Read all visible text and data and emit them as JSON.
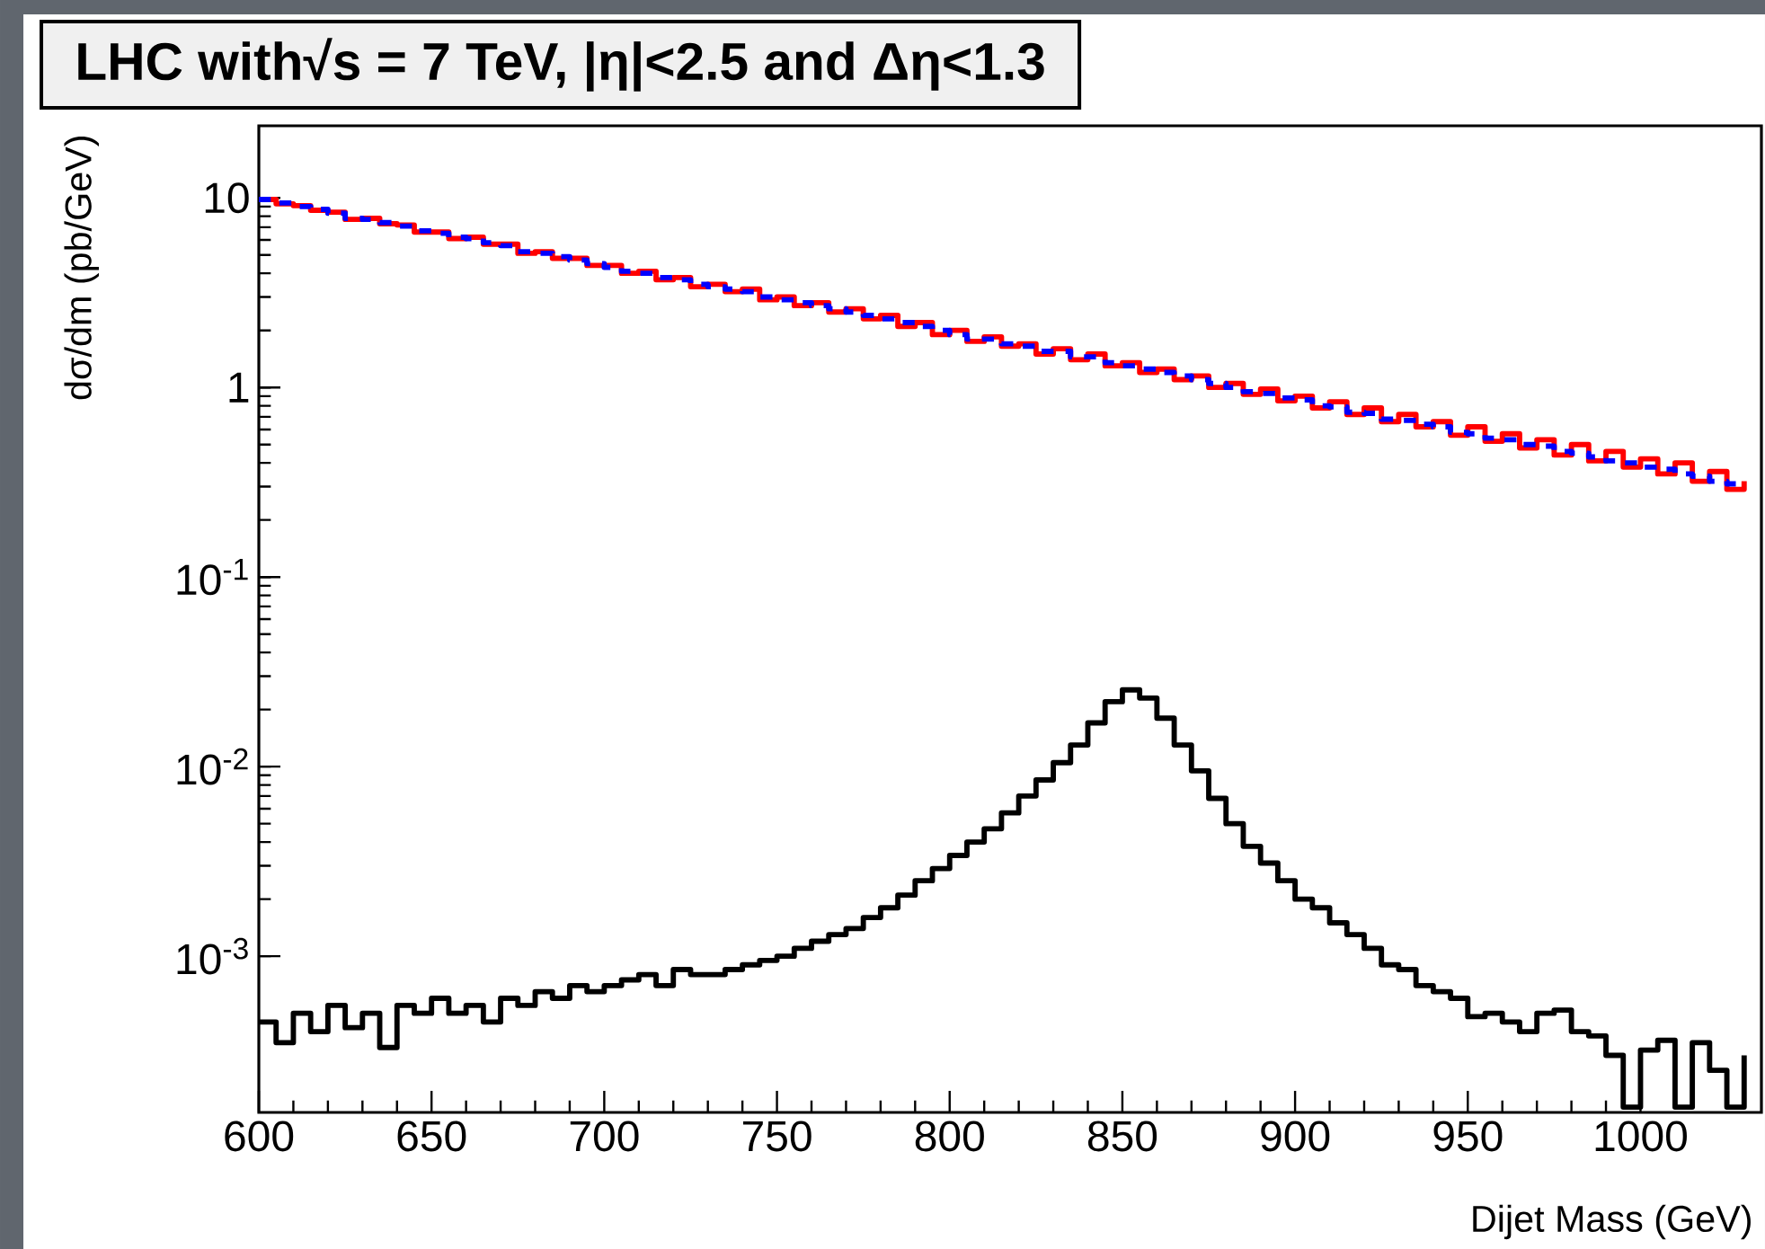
{
  "chart_data": {
    "type": "step",
    "title": "LHC with√s = 7 TeV, |η|<2.5 and Δη<1.3",
    "xlabel": "Dijet Mass (GeV)",
    "ylabel": "dσ/dm (pb/GeV)",
    "log": "y",
    "xlim": [
      600,
      1035
    ],
    "xticks": [
      600,
      650,
      700,
      750,
      800,
      850,
      900,
      950,
      1000
    ],
    "ylim": [
      0.00015,
      24
    ],
    "yticks": [
      {
        "value": 0.001,
        "label": "10$^{-3}$"
      },
      {
        "value": 0.01,
        "label": "10$^{-2}$"
      },
      {
        "value": 0.1,
        "label": "10$^{-1}$"
      },
      1,
      10
    ],
    "x": [
      600,
      605,
      610,
      615,
      620,
      625,
      630,
      635,
      640,
      645,
      650,
      655,
      660,
      665,
      670,
      675,
      680,
      685,
      690,
      695,
      700,
      705,
      710,
      715,
      720,
      725,
      730,
      735,
      740,
      745,
      750,
      755,
      760,
      765,
      770,
      775,
      780,
      785,
      790,
      795,
      800,
      805,
      810,
      815,
      820,
      825,
      830,
      835,
      840,
      845,
      850,
      855,
      860,
      865,
      870,
      875,
      880,
      885,
      890,
      895,
      900,
      905,
      910,
      915,
      920,
      925,
      930,
      935,
      940,
      945,
      950,
      955,
      960,
      965,
      970,
      975,
      980,
      985,
      990,
      995,
      1000,
      1005,
      1010,
      1015,
      1020,
      1025,
      1030
    ],
    "series": [
      {
        "color": "#ff0000",
        "line_style": "solid",
        "values": [
          9.8,
          9.3,
          9.1,
          8.6,
          8.4,
          7.7,
          7.8,
          7.3,
          7.2,
          6.6,
          6.6,
          6.1,
          6.2,
          5.7,
          5.7,
          5.1,
          5.2,
          4.8,
          4.8,
          4.4,
          4.4,
          4.0,
          4.1,
          3.7,
          3.8,
          3.4,
          3.5,
          3.2,
          3.3,
          2.9,
          3.0,
          2.7,
          2.8,
          2.5,
          2.6,
          2.3,
          2.4,
          2.1,
          2.2,
          1.9,
          2.0,
          1.75,
          1.85,
          1.65,
          1.7,
          1.5,
          1.6,
          1.4,
          1.5,
          1.3,
          1.35,
          1.2,
          1.25,
          1.1,
          1.15,
          1.0,
          1.05,
          0.92,
          0.98,
          0.85,
          0.9,
          0.78,
          0.84,
          0.72,
          0.78,
          0.66,
          0.72,
          0.62,
          0.66,
          0.56,
          0.62,
          0.52,
          0.57,
          0.48,
          0.53,
          0.44,
          0.5,
          0.41,
          0.46,
          0.38,
          0.42,
          0.35,
          0.4,
          0.32,
          0.36,
          0.29,
          0.32
        ]
      },
      {
        "color": "#0000ff",
        "line_style": "dashed",
        "values": [
          9.8,
          9.4,
          9.0,
          8.7,
          8.3,
          7.8,
          7.7,
          7.4,
          7.1,
          6.7,
          6.5,
          6.2,
          6.1,
          5.8,
          5.6,
          5.2,
          5.1,
          4.9,
          4.7,
          4.5,
          4.3,
          4.1,
          4.0,
          3.8,
          3.7,
          3.5,
          3.4,
          3.3,
          3.2,
          3.0,
          2.9,
          2.8,
          2.7,
          2.6,
          2.5,
          2.4,
          2.3,
          2.2,
          2.1,
          2.0,
          1.9,
          1.8,
          1.8,
          1.7,
          1.65,
          1.55,
          1.55,
          1.45,
          1.45,
          1.35,
          1.3,
          1.25,
          1.2,
          1.15,
          1.1,
          1.05,
          1.0,
          0.95,
          0.93,
          0.88,
          0.86,
          0.8,
          0.79,
          0.74,
          0.73,
          0.68,
          0.67,
          0.64,
          0.62,
          0.58,
          0.57,
          0.54,
          0.53,
          0.5,
          0.49,
          0.46,
          0.45,
          0.43,
          0.41,
          0.4,
          0.38,
          0.37,
          0.35,
          0.34,
          0.32,
          0.31,
          0.3
        ]
      },
      {
        "color": "#000000",
        "line_style": "solid",
        "values": [
          0.00045,
          0.00035,
          0.0005,
          0.0004,
          0.00055,
          0.00042,
          0.0005,
          0.00033,
          0.00055,
          0.0005,
          0.0006,
          0.0005,
          0.00055,
          0.00045,
          0.0006,
          0.00055,
          0.00065,
          0.0006,
          0.0007,
          0.00065,
          0.0007,
          0.00075,
          0.0008,
          0.0007,
          0.00085,
          0.0008,
          0.0008,
          0.00085,
          0.0009,
          0.00095,
          0.001,
          0.0011,
          0.0012,
          0.0013,
          0.0014,
          0.0016,
          0.0018,
          0.0021,
          0.0025,
          0.0029,
          0.0034,
          0.004,
          0.0047,
          0.0057,
          0.007,
          0.0085,
          0.0105,
          0.013,
          0.017,
          0.022,
          0.0254,
          0.023,
          0.018,
          0.013,
          0.0095,
          0.0068,
          0.005,
          0.0038,
          0.0031,
          0.0025,
          0.002,
          0.0018,
          0.0015,
          0.0013,
          0.0011,
          0.0009,
          0.00085,
          0.0007,
          0.00065,
          0.0006,
          0.00048,
          0.0005,
          0.00045,
          0.0004,
          0.0005,
          0.00052,
          0.0004,
          0.00038,
          0.0003,
          0.00016,
          0.00032,
          0.00036,
          0.00016,
          0.00035,
          0.00025,
          0.00016,
          0.0003
        ]
      }
    ]
  }
}
